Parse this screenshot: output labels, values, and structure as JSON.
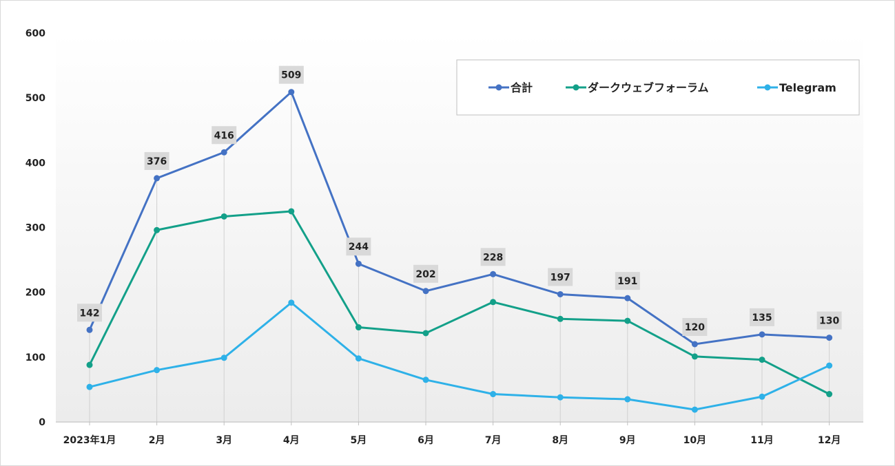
{
  "chart_data": {
    "type": "line",
    "title": "",
    "xlabel": "",
    "ylabel": "",
    "ylim": [
      0,
      600
    ],
    "yticks": [
      0,
      100,
      200,
      300,
      400,
      500,
      600
    ],
    "grid": "vertical drop lines at each category",
    "legend_position": "top-right",
    "categories": [
      "2023年1月",
      "2月",
      "3月",
      "4月",
      "5月",
      "6月",
      "7月",
      "8月",
      "9月",
      "10月",
      "11月",
      "12月"
    ],
    "series": [
      {
        "name": "合計",
        "color": "#4472c4",
        "values": [
          142,
          376,
          416,
          509,
          244,
          202,
          228,
          197,
          191,
          120,
          135,
          130
        ],
        "labels": true
      },
      {
        "name": "ダークウェブフォーラム",
        "color": "#13a089",
        "values": [
          88,
          296,
          317,
          325,
          146,
          137,
          185,
          159,
          156,
          101,
          96,
          43
        ],
        "labels": false
      },
      {
        "name": "Telegram",
        "color": "#2eb1e8",
        "values": [
          54,
          80,
          99,
          184,
          98,
          65,
          43,
          38,
          35,
          19,
          39,
          87
        ],
        "labels": false
      }
    ]
  }
}
